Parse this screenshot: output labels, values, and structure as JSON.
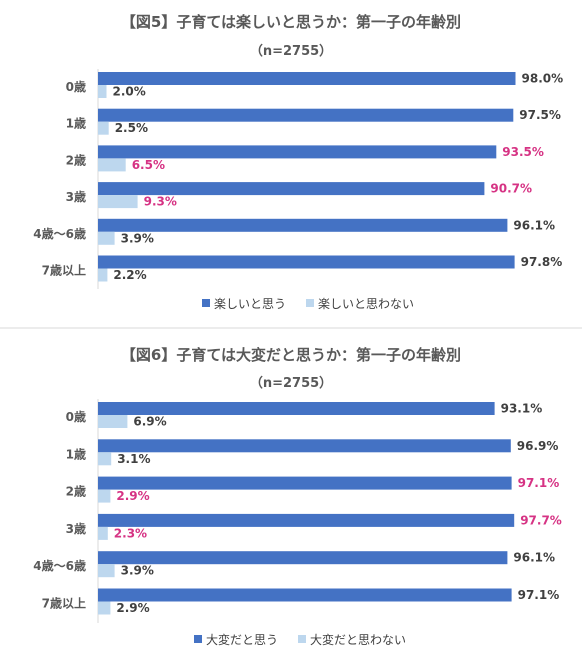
{
  "colors": {
    "primary": "#4472C4",
    "secondary": "#BDD7EE",
    "highlight": "#D63384",
    "label": "#404040"
  },
  "chart_data": [
    {
      "type": "bar",
      "orientation": "horizontal",
      "title": "【図5】子育ては楽しいと思うか：第一子の年齢別",
      "subtitle": "（n=2755）",
      "categories": [
        "0歳",
        "1歳",
        "2歳",
        "3歳",
        "4歳～6歳",
        "7歳以上"
      ],
      "xlim": [
        0,
        100
      ],
      "legend_position": "bottom",
      "series": [
        {
          "name": "楽しいと思う",
          "values": [
            98.0,
            97.5,
            93.5,
            90.7,
            96.1,
            97.8
          ],
          "labels": [
            "98.0%",
            "97.5%",
            "93.5%",
            "90.7%",
            "96.1%",
            "97.8%"
          ],
          "highlight": [
            false,
            false,
            true,
            true,
            false,
            false
          ]
        },
        {
          "name": "楽しいと思わない",
          "values": [
            2.0,
            2.5,
            6.5,
            9.3,
            3.9,
            2.2
          ],
          "labels": [
            "2.0%",
            "2.5%",
            "6.5%",
            "9.3%",
            "3.9%",
            "2.2%"
          ],
          "highlight": [
            false,
            false,
            true,
            true,
            false,
            false
          ]
        }
      ]
    },
    {
      "type": "bar",
      "orientation": "horizontal",
      "title": "【図6】子育ては大変だと思うか：第一子の年齢別",
      "subtitle": "（n=2755）",
      "categories": [
        "0歳",
        "1歳",
        "2歳",
        "3歳",
        "4歳～6歳",
        "7歳以上"
      ],
      "xlim": [
        0,
        100
      ],
      "legend_position": "bottom",
      "series": [
        {
          "name": "大変だと思う",
          "values": [
            93.1,
            96.9,
            97.1,
            97.7,
            96.1,
            97.1
          ],
          "labels": [
            "93.1%",
            "96.9%",
            "97.1%",
            "97.7%",
            "96.1%",
            "97.1%"
          ],
          "highlight": [
            false,
            false,
            true,
            true,
            false,
            false
          ]
        },
        {
          "name": "大変だと思わない",
          "values": [
            6.9,
            3.1,
            2.9,
            2.3,
            3.9,
            2.9
          ],
          "labels": [
            "6.9%",
            "3.1%",
            "2.9%",
            "2.3%",
            "3.9%",
            "2.9%"
          ],
          "highlight": [
            false,
            false,
            true,
            true,
            false,
            false
          ]
        }
      ]
    }
  ]
}
